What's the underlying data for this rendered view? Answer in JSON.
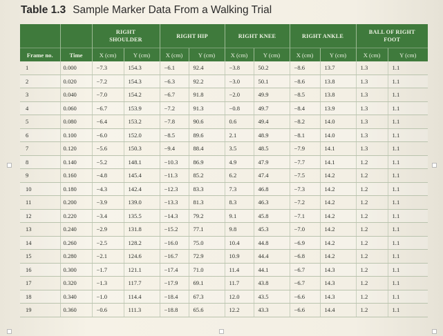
{
  "table_title": {
    "number": "Table 1.3",
    "title": "Sample Marker Data From a Walking Trial"
  },
  "groups": [
    "RIGHT SHOULDER",
    "RIGHT HIP",
    "RIGHT KNEE",
    "RIGHT ANKLE",
    "BALL OF RIGHT FOOT"
  ],
  "columns": {
    "frame": "Frame no.",
    "time": "Time",
    "x": "X (cm)",
    "y": "Y (cm)"
  },
  "rows": [
    [
      "1",
      "0.000",
      "−7.3",
      "154.3",
      "−6.1",
      "92.4",
      "−3.8",
      "50.2",
      "−8.6",
      "13.7",
      "1.3",
      "1.1"
    ],
    [
      "2",
      "0.020",
      "−7.2",
      "154.3",
      "−6.3",
      "92.2",
      "−3.0",
      "50.1",
      "−8.6",
      "13.8",
      "1.3",
      "1.1"
    ],
    [
      "3",
      "0.040",
      "−7.0",
      "154.2",
      "−6.7",
      "91.8",
      "−2.0",
      "49.9",
      "−8.5",
      "13.8",
      "1.3",
      "1.1"
    ],
    [
      "4",
      "0.060",
      "−6.7",
      "153.9",
      "−7.2",
      "91.3",
      "−0.8",
      "49.7",
      "−8.4",
      "13.9",
      "1.3",
      "1.1"
    ],
    [
      "5",
      "0.080",
      "−6.4",
      "153.2",
      "−7.8",
      "90.6",
      "0.6",
      "49.4",
      "−8.2",
      "14.0",
      "1.3",
      "1.1"
    ],
    [
      "6",
      "0.100",
      "−6.0",
      "152.0",
      "−8.5",
      "89.6",
      "2.1",
      "48.9",
      "−8.1",
      "14.0",
      "1.3",
      "1.1"
    ],
    [
      "7",
      "0.120",
      "−5.6",
      "150.3",
      "−9.4",
      "88.4",
      "3.5",
      "48.5",
      "−7.9",
      "14.1",
      "1.3",
      "1.1"
    ],
    [
      "8",
      "0.140",
      "−5.2",
      "148.1",
      "−10.3",
      "86.9",
      "4.9",
      "47.9",
      "−7.7",
      "14.1",
      "1.2",
      "1.1"
    ],
    [
      "9",
      "0.160",
      "−4.8",
      "145.4",
      "−11.3",
      "85.2",
      "6.2",
      "47.4",
      "−7.5",
      "14.2",
      "1.2",
      "1.1"
    ],
    [
      "10",
      "0.180",
      "−4.3",
      "142.4",
      "−12.3",
      "83.3",
      "7.3",
      "46.8",
      "−7.3",
      "14.2",
      "1.2",
      "1.1"
    ],
    [
      "11",
      "0.200",
      "−3.9",
      "139.0",
      "−13.3",
      "81.3",
      "8.3",
      "46.3",
      "−7.2",
      "14.2",
      "1.2",
      "1.1"
    ],
    [
      "12",
      "0.220",
      "−3.4",
      "135.5",
      "−14.3",
      "79.2",
      "9.1",
      "45.8",
      "−7.1",
      "14.2",
      "1.2",
      "1.1"
    ],
    [
      "13",
      "0.240",
      "−2.9",
      "131.8",
      "−15.2",
      "77.1",
      "9.8",
      "45.3",
      "−7.0",
      "14.2",
      "1.2",
      "1.1"
    ],
    [
      "14",
      "0.260",
      "−2.5",
      "128.2",
      "−16.0",
      "75.0",
      "10.4",
      "44.8",
      "−6.9",
      "14.2",
      "1.2",
      "1.1"
    ],
    [
      "15",
      "0.280",
      "−2.1",
      "124.6",
      "−16.7",
      "72.9",
      "10.9",
      "44.4",
      "−6.8",
      "14.2",
      "1.2",
      "1.1"
    ],
    [
      "16",
      "0.300",
      "−1.7",
      "121.1",
      "−17.4",
      "71.0",
      "11.4",
      "44.1",
      "−6.7",
      "14.3",
      "1.2",
      "1.1"
    ],
    [
      "17",
      "0.320",
      "−1.3",
      "117.7",
      "−17.9",
      "69.1",
      "11.7",
      "43.8",
      "−6.7",
      "14.3",
      "1.2",
      "1.1"
    ],
    [
      "18",
      "0.340",
      "−1.0",
      "114.4",
      "−18.4",
      "67.3",
      "12.0",
      "43.5",
      "−6.6",
      "14.3",
      "1.2",
      "1.1"
    ],
    [
      "19",
      "0.360",
      "−0.6",
      "111.3",
      "−18.8",
      "65.6",
      "12.2",
      "43.3",
      "−6.6",
      "14.4",
      "1.2",
      "1.1"
    ]
  ],
  "colors": {
    "header_green": "#3f7a3c",
    "header_text": "#eef3e4",
    "page": "#f4f0e6"
  }
}
